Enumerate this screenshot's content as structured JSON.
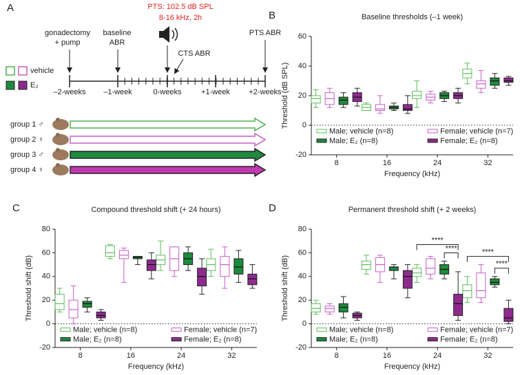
{
  "diagram": {
    "panel": "A",
    "stimulus": [
      "PTS: 102.5 dB SPL",
      "8-16 kHz, 2h"
    ],
    "events": {
      "gonadectomy": [
        "gonadectomy",
        "+ pump"
      ],
      "baseline": [
        "baseline",
        "ABR"
      ],
      "cts": "CTS ABR",
      "pts": "PTS ABR"
    },
    "legend": {
      "vehicle": "vehicle",
      "e2": "E₂"
    },
    "timeline": [
      "–2-weeks",
      "–1-week",
      "0-weeks",
      "+1-week",
      "+2-weeks"
    ],
    "groups": [
      "group 1 ♂",
      "group 2 ♀",
      "group 3 ♂",
      "group 4 ♀"
    ]
  },
  "chart_data": [
    {
      "type": "box",
      "panel": "B",
      "title": "Baseline thresholds (–1 week)",
      "x_label": "Frequency (kHz)",
      "y_label": "Threshold (dB SPL)",
      "categories": [
        "8",
        "16",
        "24",
        "32"
      ],
      "ylim": [
        -20,
        60
      ],
      "yticks": [
        -20,
        0,
        20,
        40,
        60
      ],
      "zero_line": true,
      "legend": "bottom",
      "series": [
        {
          "name": "Male; vehicle (n=8)",
          "color": "#5cbf5c",
          "filled": false,
          "values": [
            [
              12,
              15,
              18,
              20,
              24
            ],
            [
              10,
              10,
              12,
              14,
              15
            ],
            [
              12,
              18,
              20,
              23,
              30
            ],
            [
              28,
              32,
              35,
              38,
              42
            ]
          ]
        },
        {
          "name": "Female; vehicle (n=7)",
          "color": "#c75ec7",
          "filled": false,
          "values": [
            [
              12,
              14,
              18,
              22,
              25
            ],
            [
              8,
              10,
              11,
              14,
              20
            ],
            [
              15,
              17,
              19,
              21,
              23
            ],
            [
              22,
              25,
              28,
              30,
              37
            ]
          ]
        },
        {
          "name": "Male; E₂ (n=8)",
          "color": "#1f8a3d",
          "filled": true,
          "values": [
            [
              12,
              14,
              17,
              19,
              22
            ],
            [
              10,
              11,
              12,
              13,
              15
            ],
            [
              16,
              18,
              20,
              22,
              23
            ],
            [
              25,
              27,
              30,
              32,
              35
            ]
          ]
        },
        {
          "name": "Female; E₂ (n=8)",
          "color": "#8e2b8e",
          "filled": true,
          "values": [
            [
              13,
              16,
              19,
              22,
              25
            ],
            [
              8,
              10,
              11,
              14,
              20
            ],
            [
              15,
              18,
              20,
              22,
              25
            ],
            [
              27,
              29,
              30,
              32,
              33
            ]
          ]
        }
      ]
    },
    {
      "type": "box",
      "panel": "C",
      "title": "Compound threshold shift (+ 24 hours)",
      "x_label": "Frequency (kHz)",
      "y_label": "Threshold shift (dB)",
      "categories": [
        "8",
        "16",
        "24",
        "32"
      ],
      "ylim": [
        -20,
        80
      ],
      "yticks": [
        -20,
        0,
        20,
        40,
        60,
        80
      ],
      "zero_line": true,
      "legend": "bottom",
      "series": [
        {
          "name": "Male; vehicle (n=8)",
          "color": "#5cbf5c",
          "filled": false,
          "values": [
            [
              10,
              12,
              17,
              25,
              30
            ],
            [
              55,
              57,
              60,
              66,
              67
            ],
            [
              45,
              50,
              54,
              58,
              70
            ],
            [
              40,
              45,
              50,
              55,
              63
            ]
          ]
        },
        {
          "name": "Female; vehicle (n=7)",
          "color": "#c75ec7",
          "filled": false,
          "values": [
            [
              0,
              5,
              12,
              20,
              32
            ],
            [
              35,
              55,
              58,
              62,
              64
            ],
            [
              40,
              45,
              55,
              65,
              65
            ],
            [
              30,
              40,
              50,
              57,
              65
            ]
          ]
        },
        {
          "name": "Male; E₂ (n=8)",
          "color": "#1f8a3d",
          "filled": true,
          "values": [
            [
              10,
              14,
              17,
              19,
              22
            ],
            [
              50,
              55,
              56,
              57,
              57
            ],
            [
              45,
              50,
              55,
              60,
              65
            ],
            [
              35,
              42,
              48,
              55,
              62
            ]
          ]
        },
        {
          "name": "Female; E₂ (n=8)",
          "color": "#8e2b8e",
          "filled": true,
          "values": [
            [
              3,
              5,
              7,
              10,
              12
            ],
            [
              38,
              45,
              50,
              54,
              60
            ],
            [
              25,
              32,
              40,
              47,
              55
            ],
            [
              30,
              33,
              38,
              42,
              50
            ]
          ]
        }
      ]
    },
    {
      "type": "box",
      "panel": "D",
      "title": "Permanent threshold shift (+ 2 weeks)",
      "x_label": "Frequency (kHz)",
      "y_label": "Threshold shift (dB)",
      "categories": [
        "8",
        "16",
        "24",
        "32"
      ],
      "ylim": [
        -20,
        80
      ],
      "yticks": [
        -20,
        0,
        20,
        40,
        60,
        80
      ],
      "zero_line": true,
      "legend": "bottom",
      "series": [
        {
          "name": "Male; vehicle (n=8)",
          "color": "#5cbf5c",
          "filled": false,
          "values": [
            [
              8,
              10,
              13,
              17,
              20
            ],
            [
              42,
              46,
              50,
              53,
              58
            ],
            [
              35,
              40,
              43,
              47,
              50
            ],
            [
              18,
              22,
              28,
              33,
              40
            ]
          ]
        },
        {
          "name": "Female; vehicle (n=7)",
          "color": "#c75ec7",
          "filled": false,
          "values": [
            [
              8,
              10,
              13,
              15,
              17
            ],
            [
              35,
              44,
              50,
              56,
              58
            ],
            [
              38,
              42,
              47,
              55,
              57
            ],
            [
              18,
              22,
              28,
              43,
              50
            ]
          ]
        },
        {
          "name": "Male; E₂ (n=8)",
          "color": "#1f8a3d",
          "filled": true,
          "values": [
            [
              5,
              10,
              14,
              17,
              23
            ],
            [
              38,
              45,
              48,
              48,
              50
            ],
            [
              38,
              42,
              46,
              50,
              53
            ],
            [
              31,
              33,
              35,
              38,
              40
            ]
          ]
        },
        {
          "name": "Female; E₂ (n=8)",
          "color": "#8e2b8e",
          "filled": true,
          "values": [
            [
              3,
              5,
              7,
              9,
              10
            ],
            [
              22,
              30,
              40,
              45,
              50
            ],
            [
              3,
              7,
              17,
              25,
              44
            ],
            [
              0,
              2,
              5,
              13,
              20
            ]
          ]
        }
      ],
      "significance": [
        {
          "category": 2,
          "between": [
            2,
            3
          ],
          "label": "****"
        },
        {
          "category": 2,
          "between": [
            0,
            3
          ],
          "label": "****"
        },
        {
          "category": 3,
          "between": [
            2,
            3
          ],
          "label": "****"
        },
        {
          "category": 3,
          "between": [
            0,
            3
          ],
          "label": "****"
        }
      ]
    }
  ]
}
